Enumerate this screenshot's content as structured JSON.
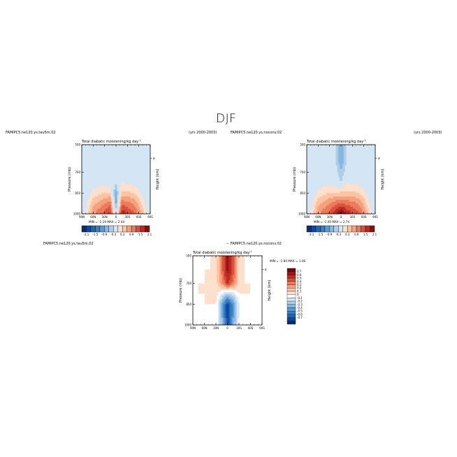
{
  "figure": {
    "title": "DJF"
  },
  "colors": {
    "diverging": [
      "#08306b",
      "#0a47a8",
      "#2166ac",
      "#4393c3",
      "#7fb0dc",
      "#a9cbe8",
      "#cfe2f3",
      "#eef5fb",
      "#fdebd9",
      "#fbd0b0",
      "#f6a582",
      "#ec7558",
      "#d7452f",
      "#b21f1e",
      "#850f13"
    ]
  },
  "panels": [
    {
      "id": "left",
      "case_name": "FAMIPC5.ne120.ys.tau5m.02",
      "years": "(yrs 2000-2003)",
      "title": "Total diabatic moistening/kg day",
      "title_sup": "-1",
      "ylabel": "Pressure (mb)",
      "ylabel_right": "Height (km)",
      "right_tick": "4",
      "min_label": "MIN =",
      "min_value": "-1.19",
      "max_label": "MAX =",
      "max_value": "2.44",
      "colorbar_labels": [
        "-2.1",
        "-1.5",
        "-0.9",
        "-0.3",
        "0.3",
        "0.9",
        "1.5",
        "2.1"
      ]
    },
    {
      "id": "right",
      "case_name": "FAMIPC5.ne120.ys.noconv.02",
      "years": "(yrs 2000-2003)",
      "title": "Total diabatic moistening/kg day",
      "title_sup": "-1",
      "ylabel": "Pressure (mb)",
      "ylabel_right": "Height (km)",
      "right_tick": "4",
      "min_label": "MIN =",
      "min_value": "-1.05",
      "max_label": "MAX =",
      "max_value": "2.74",
      "colorbar_labels": [
        "-2.1",
        "-1.5",
        "-0.9",
        "-0.3",
        "0.3",
        "0.9",
        "1.5",
        "2.1"
      ]
    },
    {
      "id": "diff",
      "case_name": "FAMIPC5.ne120.ys.tau5m.02",
      "subtitle": "− FAMIPC5.ne120.ys.noconv.02",
      "title": "Total diabatic moistening/kg day",
      "title_sup": "-1",
      "ylabel": "Pressure (mb)",
      "ylabel_right": "Height (km)",
      "right_tick": "4",
      "min_label": "MIN =",
      "min_value": "-1.84",
      "max_label": "MAX =",
      "max_value": "1.06",
      "colorbar_labels": [
        "0.7",
        "0.6",
        "0.5",
        "0.4",
        "0.3",
        "0.2",
        "0.1",
        "0",
        "-0.1",
        "-0.2",
        "-0.3",
        "-0.4",
        "-0.5",
        "-0.6",
        "-0.7"
      ]
    }
  ],
  "chart_data": [
    {
      "type": "heatmap",
      "title": "Total diabatic moistening/kg day-1",
      "subtitle": "FAMIPC5.ne120.ys.tau5m.02 (yrs 2000-2003)",
      "xlabel": "",
      "ylabel": "Pressure (mb)",
      "x_tick_labels": [
        "90N",
        "60N",
        "30N",
        "0",
        "30S",
        "60S",
        "90S"
      ],
      "y_tick_labels": [
        "500",
        "700",
        "850",
        "1000"
      ],
      "y_ticks": [
        500,
        700,
        850,
        1000
      ],
      "ylim": [
        1000,
        500
      ],
      "x_values": [
        90,
        75,
        60,
        45,
        30,
        15,
        0,
        -15,
        -30,
        -45,
        -60,
        -75,
        -90
      ],
      "levels": [
        1000,
        925,
        850,
        775,
        700,
        600,
        500
      ],
      "z": [
        [
          -0.3,
          0.5,
          1.1,
          1.4,
          1.6,
          1.9,
          -0.3,
          2.1,
          1.8,
          1.6,
          1.2,
          0.6,
          -0.3
        ],
        [
          -0.2,
          0.3,
          0.8,
          1.0,
          1.2,
          1.4,
          -0.9,
          1.4,
          1.3,
          1.2,
          0.8,
          0.3,
          -0.2
        ],
        [
          -0.2,
          0.1,
          0.4,
          0.5,
          0.6,
          0.6,
          -0.9,
          0.7,
          0.7,
          0.6,
          0.4,
          0.1,
          -0.2
        ],
        [
          -0.2,
          -0.1,
          0.1,
          0.2,
          0.1,
          0.2,
          -0.3,
          0.3,
          0.2,
          0.2,
          0.1,
          -0.1,
          -0.2
        ],
        [
          -0.3,
          -0.2,
          -0.1,
          0.1,
          -0.1,
          0.1,
          0.1,
          0.1,
          0.1,
          -0.1,
          -0.1,
          -0.2,
          -0.3
        ],
        [
          -0.3,
          -0.3,
          -0.3,
          -0.1,
          -0.2,
          -0.1,
          0.1,
          -0.1,
          -0.2,
          -0.1,
          -0.3,
          -0.3,
          -0.3
        ],
        [
          -0.2,
          -0.3,
          -0.3,
          -0.2,
          -0.2,
          -0.1,
          -0.1,
          -0.1,
          -0.2,
          -0.2,
          -0.3,
          -0.3,
          -0.2
        ]
      ],
      "colorbar_levels": [
        -2.1,
        -1.5,
        -0.9,
        -0.3,
        0.3,
        0.9,
        1.5,
        2.1
      ],
      "min": -1.19,
      "max": 2.44
    },
    {
      "type": "heatmap",
      "title": "Total diabatic moistening/kg day-1",
      "subtitle": "FAMIPC5.ne120.ys.noconv.02 (yrs 2000-2003)",
      "xlabel": "",
      "ylabel": "Pressure (mb)",
      "x_tick_labels": [
        "90N",
        "60N",
        "30N",
        "0",
        "30S",
        "60S",
        "90S"
      ],
      "y_tick_labels": [
        "500",
        "700",
        "850",
        "1000"
      ],
      "y_ticks": [
        500,
        700,
        850,
        1000
      ],
      "ylim": [
        1000,
        500
      ],
      "x_values": [
        90,
        75,
        60,
        45,
        30,
        15,
        0,
        -15,
        -30,
        -45,
        -60,
        -75,
        -90
      ],
      "levels": [
        1000,
        925,
        850,
        775,
        700,
        600,
        500
      ],
      "z": [
        [
          -0.3,
          0.5,
          1.1,
          1.4,
          1.6,
          2.0,
          2.6,
          2.1,
          1.8,
          1.6,
          1.2,
          0.6,
          -0.3
        ],
        [
          -0.2,
          0.3,
          0.8,
          1.0,
          1.2,
          1.4,
          1.5,
          1.4,
          1.3,
          1.2,
          0.8,
          0.3,
          -0.2
        ],
        [
          -0.2,
          0.1,
          0.4,
          0.5,
          0.6,
          0.6,
          0.7,
          0.7,
          0.7,
          0.6,
          0.4,
          0.1,
          -0.2
        ],
        [
          -0.2,
          -0.1,
          0.1,
          0.2,
          0.1,
          0.2,
          -0.3,
          0.3,
          0.2,
          0.2,
          0.1,
          -0.1,
          -0.2
        ],
        [
          -0.3,
          -0.2,
          -0.1,
          0.1,
          -0.1,
          -0.1,
          -0.6,
          -0.1,
          0.1,
          -0.1,
          -0.1,
          -0.2,
          -0.3
        ],
        [
          -0.3,
          -0.3,
          -0.3,
          -0.1,
          -0.2,
          -0.3,
          -0.9,
          -0.3,
          -0.2,
          -0.1,
          -0.3,
          -0.3,
          -0.3
        ],
        [
          -0.2,
          -0.3,
          -0.3,
          -0.2,
          -0.2,
          -0.3,
          -0.9,
          -0.3,
          -0.2,
          -0.2,
          -0.3,
          -0.3,
          -0.2
        ]
      ],
      "colorbar_levels": [
        -2.1,
        -1.5,
        -0.9,
        -0.3,
        0.3,
        0.9,
        1.5,
        2.1
      ],
      "min": -1.05,
      "max": 2.74
    },
    {
      "type": "heatmap",
      "title": "Total diabatic moistening/kg day-1",
      "subtitle": "FAMIPC5.ne120.ys.tau5m.02 − FAMIPC5.ne120.ys.noconv.02",
      "xlabel": "",
      "ylabel": "Pressure (mb)",
      "x_tick_labels": [
        "90N",
        "60N",
        "30N",
        "0",
        "30S",
        "60S",
        "90S"
      ],
      "y_tick_labels": [
        "500",
        "700",
        "850",
        "1000"
      ],
      "y_ticks": [
        500,
        700,
        850,
        1000
      ],
      "ylim": [
        1000,
        500
      ],
      "x_values": [
        90,
        75,
        60,
        45,
        30,
        15,
        0,
        -15,
        -30,
        -45,
        -60,
        -75,
        -90
      ],
      "levels": [
        1000,
        925,
        850,
        775,
        700,
        600,
        500
      ],
      "z": [
        [
          0.0,
          0.0,
          0.0,
          0.0,
          0.05,
          -0.2,
          -0.7,
          -0.3,
          0.0,
          0.0,
          0.0,
          0.0,
          0.0
        ],
        [
          0.0,
          0.0,
          0.0,
          0.0,
          0.05,
          -0.3,
          -0.7,
          -0.4,
          -0.05,
          0.0,
          0.0,
          0.0,
          0.0
        ],
        [
          0.0,
          0.0,
          0.05,
          0.05,
          0.05,
          -0.3,
          -0.7,
          -0.4,
          -0.05,
          0.05,
          0.0,
          0.0,
          0.0
        ],
        [
          0.0,
          0.05,
          0.05,
          0.05,
          0.1,
          -0.05,
          -0.2,
          -0.1,
          0.05,
          0.05,
          0.05,
          0.0,
          0.0
        ],
        [
          0.0,
          0.05,
          0.05,
          0.1,
          0.1,
          0.3,
          0.6,
          0.4,
          0.1,
          0.05,
          0.05,
          0.0,
          0.0
        ],
        [
          0.0,
          0.0,
          0.05,
          0.05,
          0.1,
          0.4,
          0.7,
          0.5,
          0.1,
          0.05,
          0.0,
          0.0,
          0.0
        ],
        [
          0.0,
          0.0,
          0.0,
          0.05,
          0.05,
          0.4,
          0.7,
          0.5,
          0.1,
          0.05,
          0.0,
          0.0,
          0.0
        ]
      ],
      "colorbar_levels": [
        0.7,
        0.6,
        0.5,
        0.4,
        0.3,
        0.2,
        0.1,
        0,
        -0.1,
        -0.2,
        -0.3,
        -0.4,
        -0.5,
        -0.6,
        -0.7
      ],
      "min": -1.84,
      "max": 1.06
    }
  ]
}
